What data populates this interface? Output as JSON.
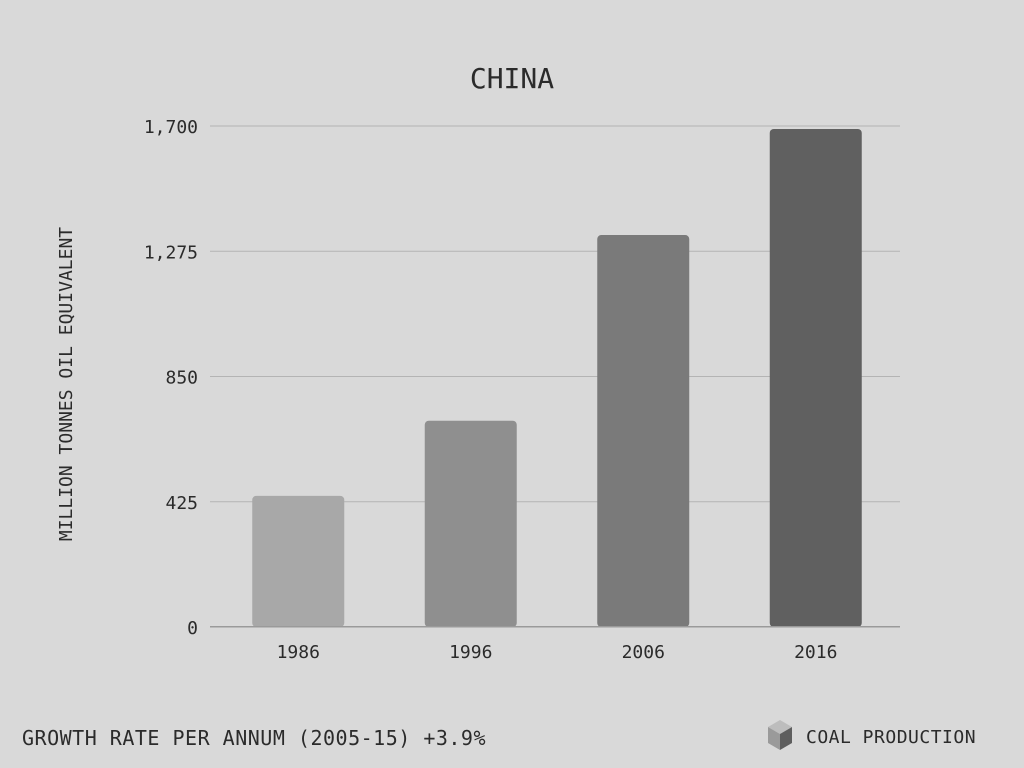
{
  "chart_data": {
    "type": "bar",
    "title": "CHINA",
    "ylabel": "MILLION TONNES OIL EQUIVALENT",
    "xlabel": "",
    "categories": [
      "1986",
      "1996",
      "2006",
      "2016"
    ],
    "values": [
      445,
      700,
      1330,
      1690
    ],
    "ylim": [
      0,
      1700
    ],
    "yticks": [
      "0",
      "425",
      "850",
      "1,275",
      "1,700"
    ],
    "ytick_values": [
      0,
      425,
      850,
      1275,
      1700
    ],
    "bar_colors": [
      "#a8a8a8",
      "#8f8f8f",
      "#7a7a7a",
      "#606060"
    ],
    "grid": true
  },
  "footer": {
    "growth_text": "GROWTH RATE PER ANNUM (2005-15) +3.9%",
    "legend_label": "COAL PRODUCTION",
    "legend_icon": "cube-icon"
  },
  "colors": {
    "background": "#d9d9d9",
    "text": "#2b2b2b",
    "grid": "#b4b4b4"
  }
}
